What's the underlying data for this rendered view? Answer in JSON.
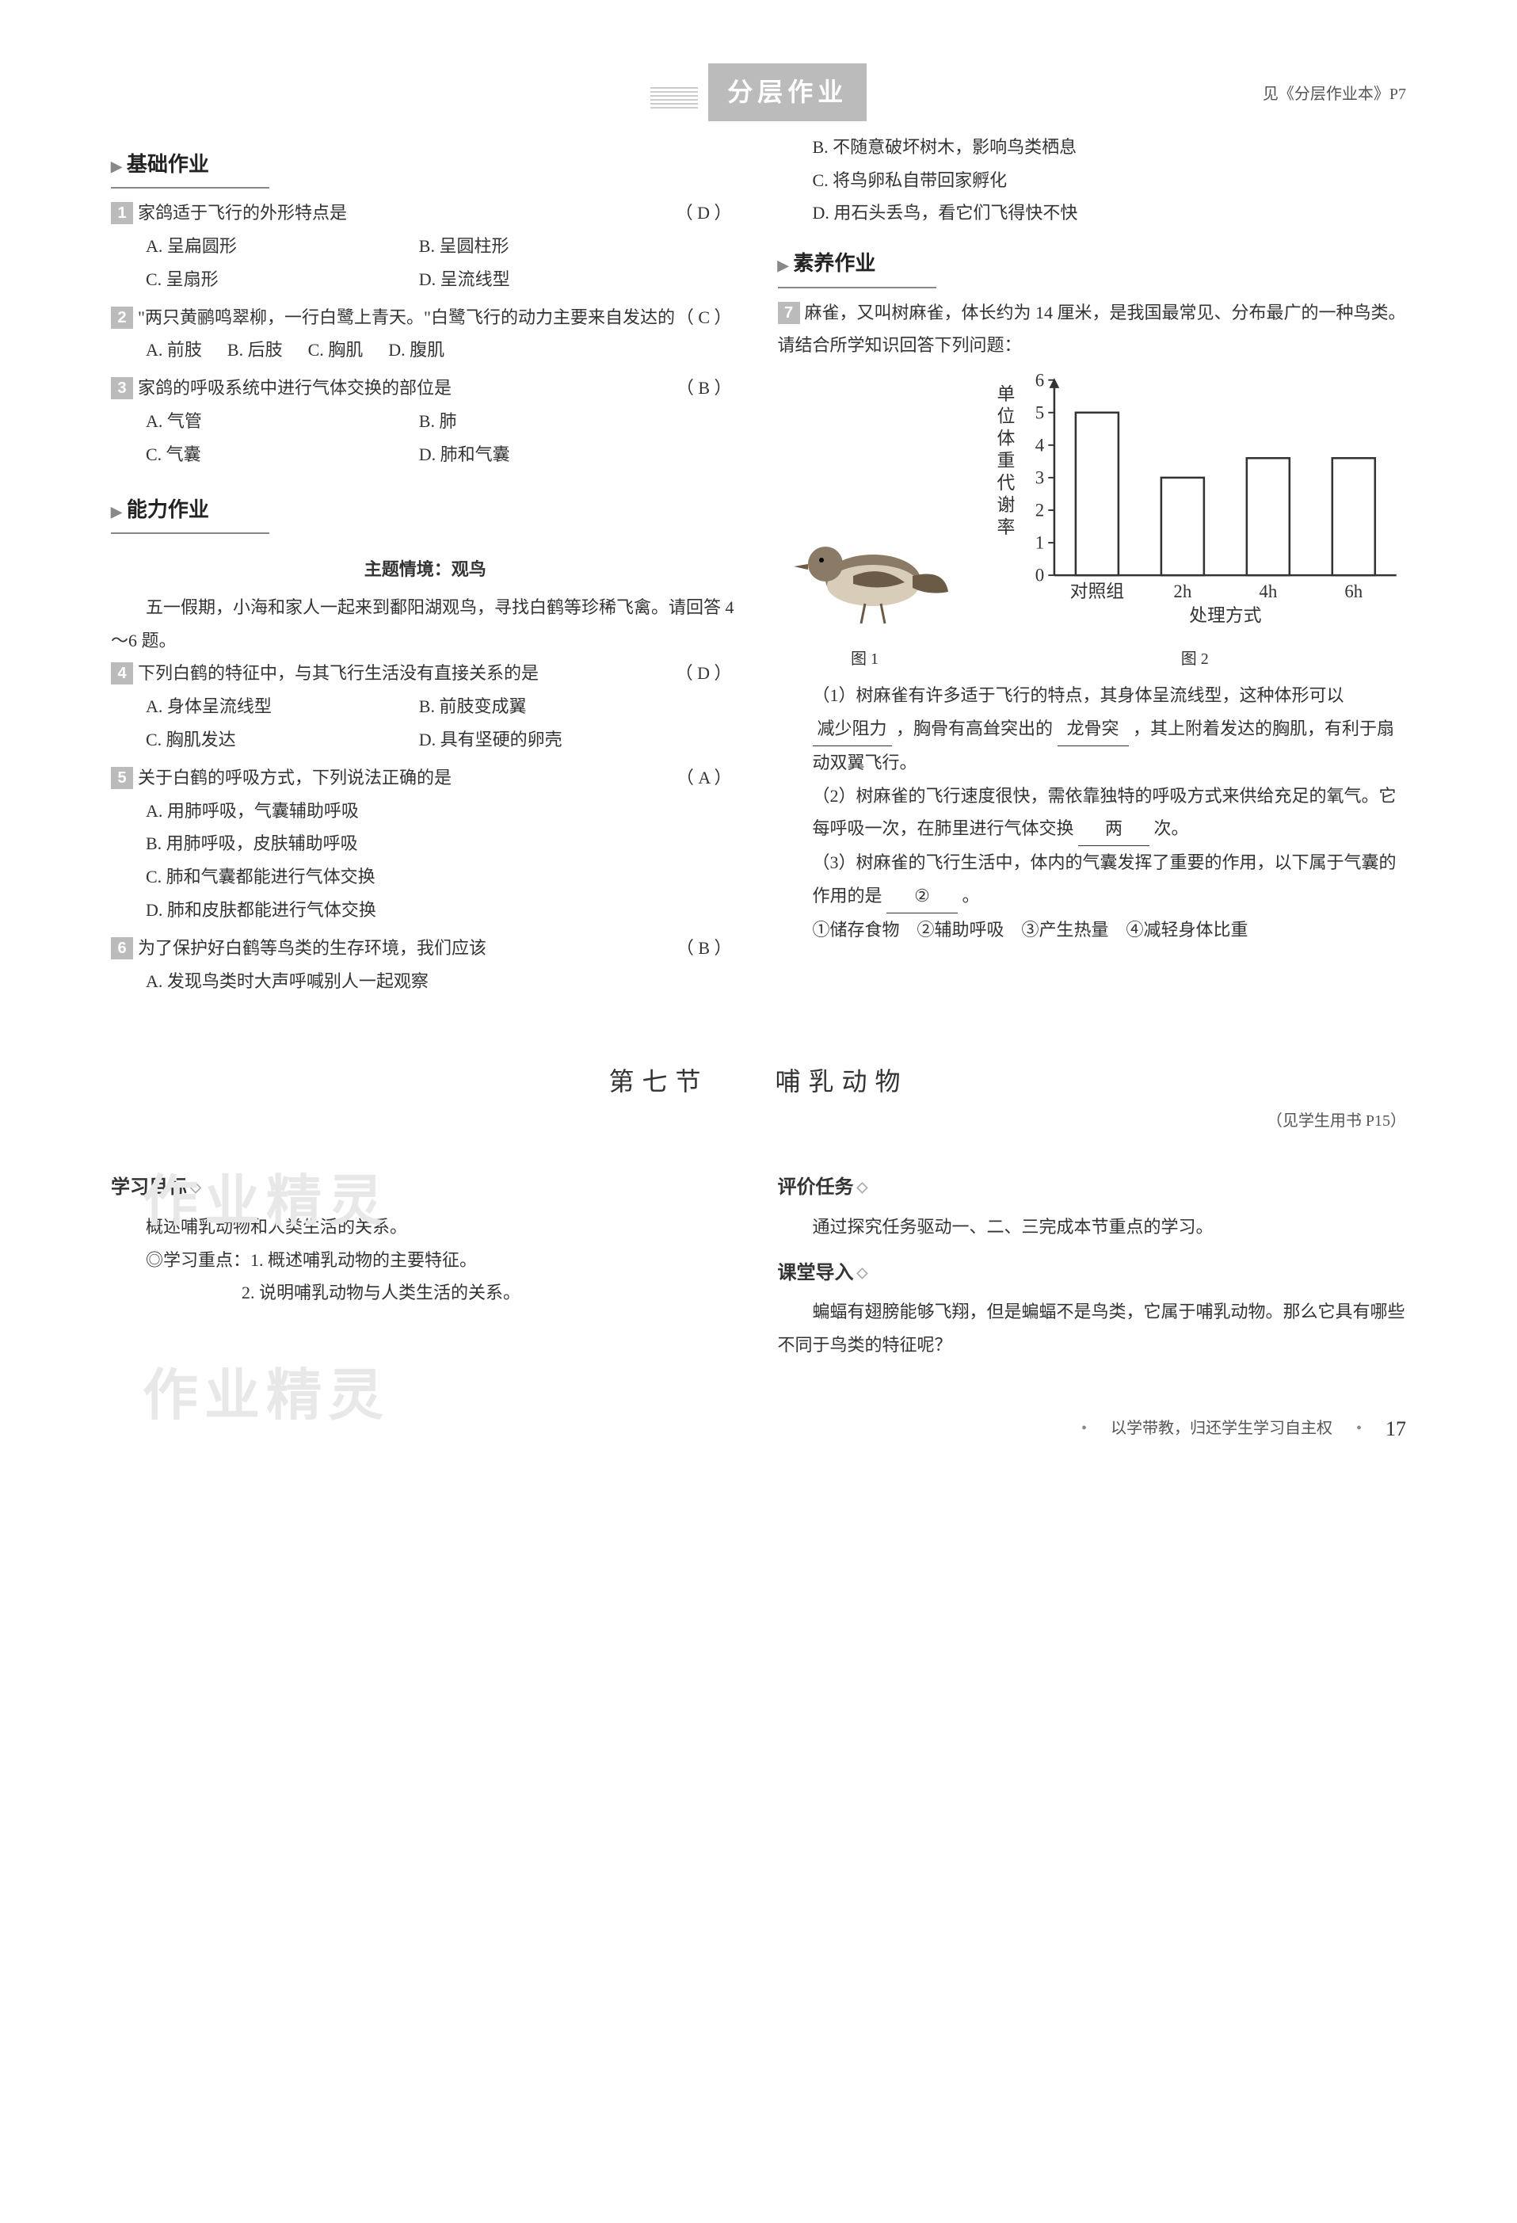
{
  "banner": {
    "title": "分层作业",
    "ref": "见《分层作业本》P7"
  },
  "sections": {
    "basic": "基础作业",
    "ability": "能力作业",
    "literacy": "素养作业"
  },
  "q1": {
    "num": "1",
    "stem": "家鸽适于飞行的外形特点是",
    "answer": "（ D ）",
    "opts": {
      "a": "A. 呈扁圆形",
      "b": "B. 呈圆柱形",
      "c": "C. 呈扇形",
      "d": "D. 呈流线型"
    }
  },
  "q2": {
    "num": "2",
    "stem": "\"两只黄鹂鸣翠柳，一行白鹭上青天。\"白鹭飞行的动力主要来自发达的",
    "answer": "（ C ）",
    "opts": {
      "a": "A. 前肢",
      "b": "B. 后肢",
      "c": "C. 胸肌",
      "d": "D. 腹肌"
    }
  },
  "q3": {
    "num": "3",
    "stem": "家鸽的呼吸系统中进行气体交换的部位是",
    "answer": "（ B ）",
    "opts": {
      "a": "A. 气管",
      "b": "B. 肺",
      "c": "C. 气囊",
      "d": "D. 肺和气囊"
    }
  },
  "scene": {
    "title": "主题情境：观鸟",
    "intro": "五一假期，小海和家人一起来到鄱阳湖观鸟，寻找白鹤等珍稀飞禽。请回答 4～6 题。"
  },
  "q4": {
    "num": "4",
    "stem": "下列白鹤的特征中，与其飞行生活没有直接关系的是",
    "answer": "（ D ）",
    "opts": {
      "a": "A. 身体呈流线型",
      "b": "B. 前肢变成翼",
      "c": "C. 胸肌发达",
      "d": "D. 具有坚硬的卵壳"
    }
  },
  "q5": {
    "num": "5",
    "stem": "关于白鹤的呼吸方式，下列说法正确的是",
    "answer": "（ A ）",
    "opts": {
      "a": "A. 用肺呼吸，气囊辅助呼吸",
      "b": "B. 用肺呼吸，皮肤辅助呼吸",
      "c": "C. 肺和气囊都能进行气体交换",
      "d": "D. 肺和皮肤都能进行气体交换"
    }
  },
  "q6": {
    "num": "6",
    "stem": "为了保护好白鹤等鸟类的生存环境，我们应该",
    "answer": "（ B ）",
    "opts": {
      "a": "A. 发现鸟类时大声呼喊别人一起观察",
      "b": "B. 不随意破坏树木，影响鸟类栖息",
      "c": "C. 将鸟卵私自带回家孵化",
      "d": "D. 用石头丢鸟，看它们飞得快不快"
    }
  },
  "q7": {
    "num": "7",
    "stem": "麻雀，又叫树麻雀，体长约为 14 厘米，是我国最常见、分布最广的一种鸟类。请结合所学知识回答下列问题：",
    "fig1": "图 1",
    "fig2": "图 2",
    "chart": {
      "ylabel": "单位体重代谢率",
      "xlabel": "处理方式",
      "ymax": 6,
      "yticks": [
        0,
        1,
        2,
        3,
        4,
        5,
        6
      ],
      "categories": [
        "对照组",
        "2h",
        "4h",
        "6h"
      ],
      "values": [
        5.0,
        3.0,
        3.6,
        3.6
      ],
      "bar_color": "#ffffff",
      "bar_border": "#333333",
      "axis_color": "#333333"
    },
    "p1a": "（1）树麻雀有许多适于飞行的特点，其身体呈流线型，这种体形可以",
    "p1_fill": "减少阻力",
    "p1b": "，胸骨有高耸突出的",
    "p1_fill2": "龙骨突",
    "p1c": "，其上附着发达的胸肌，有利于扇动双翼飞行。",
    "p2a": "（2）树麻雀的飞行速度很快，需依靠独特的呼吸方式来供给充足的氧气。它每呼吸一次，在肺里进行气体交换",
    "p2_fill": "两",
    "p2b": "次。",
    "p3a": "（3）树麻雀的飞行生活中，体内的气囊发挥了重要的作用，以下属于气囊的作用的是",
    "p3_fill": "②",
    "p3b": "。",
    "p3c": "①储存食物　②辅助呼吸　③产生热量　④减轻身体比重"
  },
  "section7": {
    "title": "第七节　　哺乳动物",
    "ref": "（见学生用书 P15）"
  },
  "goals": {
    "hdr": "学习目标",
    "l1": "概述哺乳动物和人类生活的关系。",
    "l2": "◎学习重点：1. 概述哺乳动物的主要特征。",
    "l3": "2. 说明哺乳动物与人类生活的关系。"
  },
  "tasks": {
    "hdr": "评价任务",
    "l1": "通过探究任务驱动一、二、三完成本节重点的学习。"
  },
  "lead": {
    "hdr": "课堂导入",
    "l1": "蝙蝠有翅膀能够飞翔，但是蝙蝠不是鸟类，它属于哺乳动物。那么它具有哪些不同于鸟类的特征呢？"
  },
  "footer": {
    "slogan": "以学带教，归还学生学习自主权",
    "page": "17"
  },
  "watermark": "作业精灵"
}
